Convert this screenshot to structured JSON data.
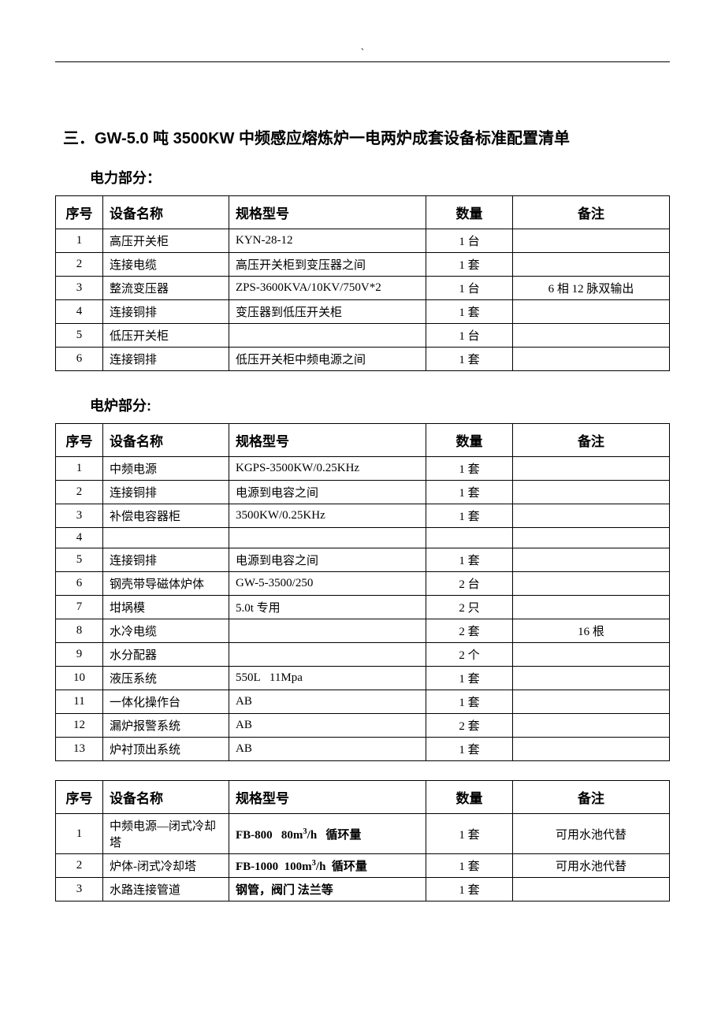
{
  "headerMark": "`",
  "mainTitle": "三．GW-5.0 吨 3500KW 中频感应熔炼炉一电两炉成套设备标准配置清单",
  "sections": [
    {
      "title": "电力部分：",
      "headers": {
        "idx": "序号",
        "name": "设备名称",
        "spec": "规格型号",
        "qty": "数量",
        "note": "备注"
      },
      "rows": [
        {
          "idx": "1",
          "name": "高压开关柜",
          "spec": "KYN-28-12",
          "qty": "1 台",
          "note": ""
        },
        {
          "idx": "2",
          "name": "连接电缆",
          "spec": "高压开关柜到变压器之间",
          "qty": "1 套",
          "note": ""
        },
        {
          "idx": "3",
          "name": "整流变压器",
          "spec": "ZPS-3600KVA/10KV/750V*2",
          "qty": "1 台",
          "note": "6 相 12 脉双输出"
        },
        {
          "idx": "4",
          "name": "连接铜排",
          "spec": "变压器到低压开关柜",
          "qty": "1 套",
          "note": ""
        },
        {
          "idx": "5",
          "name": "低压开关柜",
          "spec": "",
          "qty": "1 台",
          "note": ""
        },
        {
          "idx": "6",
          "name": "连接铜排",
          "spec": "低压开关柜中频电源之间",
          "qty": "1 套",
          "note": ""
        }
      ]
    },
    {
      "title": "电炉部分:",
      "headers": {
        "idx": "序号",
        "name": "设备名称",
        "spec": "规格型号",
        "qty": "数量",
        "note": "备注"
      },
      "rows": [
        {
          "idx": "1",
          "name": "中频电源",
          "spec": "KGPS-3500KW/0.25KHz",
          "qty": "1 套",
          "note": ""
        },
        {
          "idx": "2",
          "name": "连接铜排",
          "spec": "电源到电容之间",
          "qty": "1 套",
          "note": ""
        },
        {
          "idx": "3",
          "name": "补偿电容器柜",
          "spec": "3500KW/0.25KHz",
          "qty": "1 套",
          "note": ""
        },
        {
          "idx": "4",
          "name": "",
          "spec": "",
          "qty": "",
          "note": ""
        },
        {
          "idx": "5",
          "name": "连接铜排",
          "spec": "电源到电容之间",
          "qty": "1 套",
          "note": ""
        },
        {
          "idx": "6",
          "name": "钢壳带导磁体炉体",
          "spec": "GW-5-3500/250",
          "qty": "2 台",
          "note": ""
        },
        {
          "idx": "7",
          "name": "坩埚模",
          "spec": "5.0t 专用",
          "qty": "2 只",
          "note": ""
        },
        {
          "idx": "8",
          "name": "水冷电缆",
          "spec": "",
          "qty": "2 套",
          "note": "16 根"
        },
        {
          "idx": "9",
          "name": "水分配器",
          "spec": "",
          "qty": "2 个",
          "note": ""
        },
        {
          "idx": "10",
          "name": "液压系统",
          "spec": "550L   11Mpa",
          "qty": "1 套",
          "note": ""
        },
        {
          "idx": "11",
          "name": "一体化操作台",
          "spec": "AB",
          "qty": "1 套",
          "note": ""
        },
        {
          "idx": "12",
          "name": "漏炉报警系统",
          "spec": "AB",
          "qty": "2 套",
          "note": ""
        },
        {
          "idx": "13",
          "name": "炉衬顶出系统",
          "spec": "AB",
          "qty": "1 套",
          "note": ""
        }
      ]
    },
    {
      "title": "",
      "headers": {
        "idx": "序号",
        "name": "设备名称",
        "spec": "规格型号",
        "qty": "数量",
        "note": "备注"
      },
      "rows": [
        {
          "idx": "1",
          "name": "中频电源—闭式冷却塔",
          "specHtml": "<span class='spec-bold'>FB-800&nbsp;&nbsp;&nbsp;80m<sup>3</sup>/h&nbsp;&nbsp;&nbsp;循环量</span>",
          "qty": "1 套",
          "note": "可用水池代替"
        },
        {
          "idx": "2",
          "name": "炉体-闭式冷却塔",
          "specHtml": "<span class='spec-bold'>FB-1000&nbsp;&nbsp;100m<sup>3</sup>/h&nbsp;&nbsp;循环量</span>",
          "qty": "1 套",
          "note": "可用水池代替"
        },
        {
          "idx": "3",
          "name": "水路连接管道",
          "specHtml": "<span class='spec-bold'>钢管，阀门 法兰等</span>",
          "qty": "1 套",
          "note": ""
        }
      ]
    }
  ]
}
